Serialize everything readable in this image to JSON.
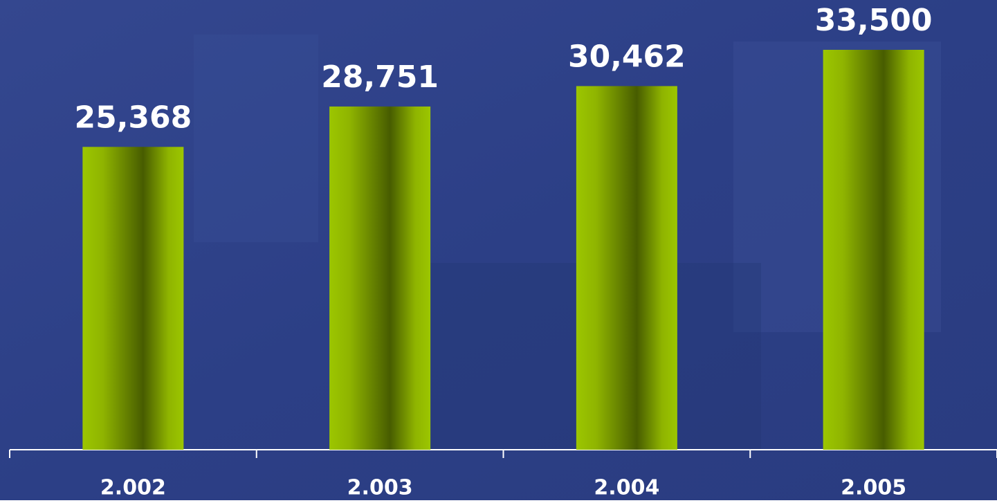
{
  "chart_data": {
    "type": "bar",
    "categories": [
      "2.002",
      "2.003",
      "2.004",
      "2.005"
    ],
    "values": [
      25368,
      28751,
      30462,
      33500
    ],
    "value_labels": [
      "25,368",
      "28,751",
      "30,462",
      "33,500"
    ]
  }
}
